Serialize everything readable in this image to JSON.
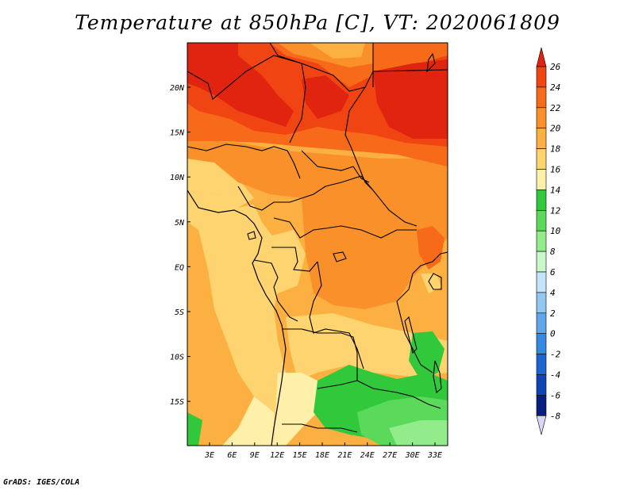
{
  "title": "Temperature at 850hPa [C], VT: 2020061809",
  "footer": "GrADS: IGES/COLA",
  "map": {
    "lat_labels": [
      "20N",
      "15N",
      "10N",
      "5N",
      "EQ",
      "5S",
      "10S",
      "15S"
    ],
    "lon_labels": [
      "3E",
      "6E",
      "9E",
      "12E",
      "15E",
      "18E",
      "21E",
      "24E",
      "27E",
      "30E",
      "33E"
    ]
  },
  "colorbar": {
    "labels": [
      "26",
      "24",
      "22",
      "20",
      "18",
      "16",
      "14",
      "12",
      "10",
      "8",
      "6",
      "4",
      "2",
      "0",
      "-2",
      "-4",
      "-6",
      "-8"
    ],
    "colors": [
      "#e0240f",
      "#f04412",
      "#f76a1a",
      "#f9902a",
      "#fbb041",
      "#fdd470",
      "#fef0a8",
      "#32c83c",
      "#5ad95a",
      "#93ec8c",
      "#c8f8c8",
      "#c4e4f8",
      "#92c7f2",
      "#5fa6ea",
      "#3688e0",
      "#1c66d2",
      "#0f44b4",
      "#0a1e82"
    ]
  }
}
